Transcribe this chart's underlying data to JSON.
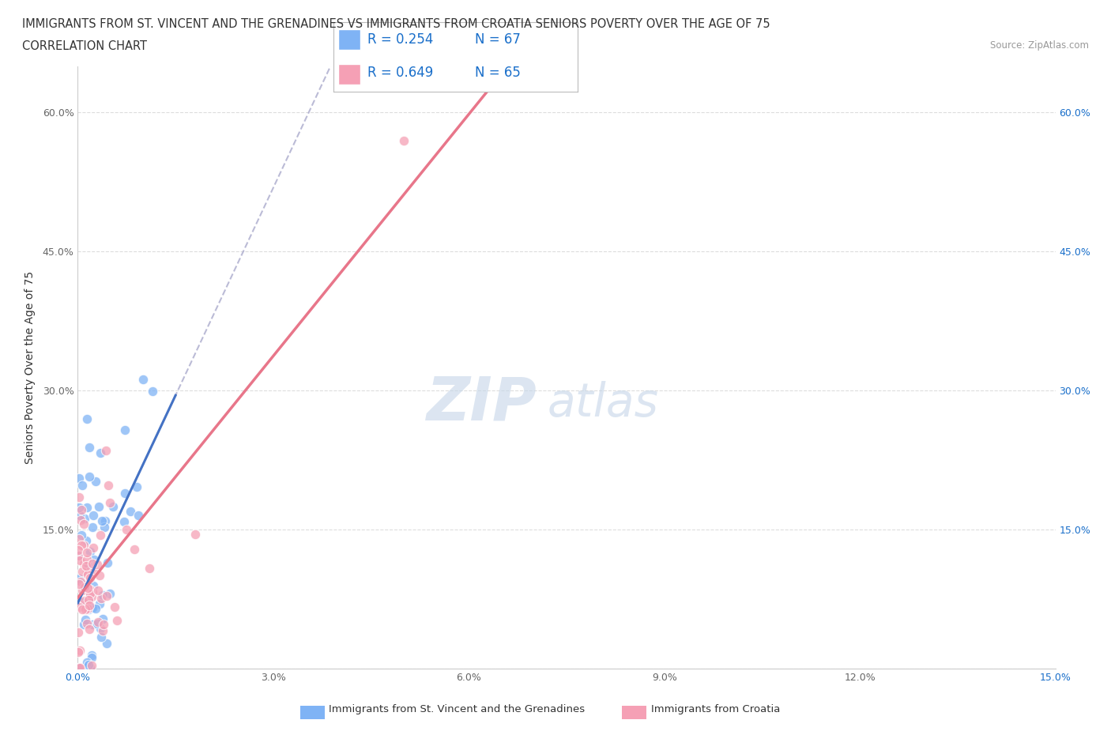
{
  "title_line1": "IMMIGRANTS FROM ST. VINCENT AND THE GRENADINES VS IMMIGRANTS FROM CROATIA SENIORS POVERTY OVER THE AGE OF 75",
  "title_line2": "CORRELATION CHART",
  "source_text": "Source: ZipAtlas.com",
  "ylabel": "Seniors Poverty Over the Age of 75",
  "xlim": [
    0.0,
    0.15
  ],
  "ylim": [
    0.0,
    0.65
  ],
  "series1_color": "#7fb3f5",
  "series2_color": "#f5a0b5",
  "series1_label": "Immigrants from St. Vincent and the Grenadines",
  "series2_label": "Immigrants from Croatia",
  "R1": 0.254,
  "N1": 67,
  "R2": 0.649,
  "N2": 65,
  "trend1_solid_color": "#4472c4",
  "trend1_dash_color": "#aaaacc",
  "trend2_color": "#e8768a",
  "watermark_ZIP_color": "#c5d5e8",
  "watermark_atlas_color": "#c5d5e8",
  "legend_color": "#1a6fca",
  "grid_color": "#dddddd",
  "axis_color": "#cccccc",
  "right_axis_color": "#1a6fca",
  "bottom_axis_color": "#1a6fca"
}
